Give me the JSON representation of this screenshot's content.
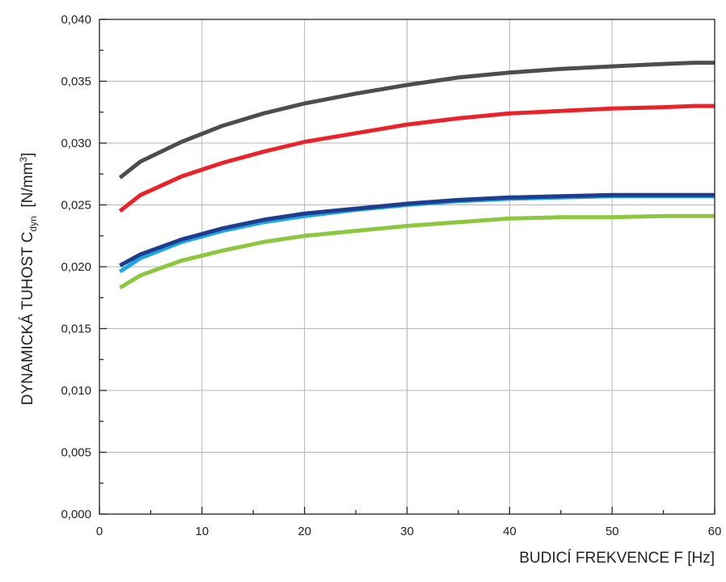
{
  "chart_data": {
    "type": "line",
    "title": "",
    "xlabel": "BUDICÍ FREKVENCE  F [Hz]",
    "ylabel": {
      "main": "DYNAMICKÁ TUHOST C",
      "subscript": "dyn",
      "unit_start": "  [N/mm",
      "superscript": "3",
      "unit_end": "]"
    },
    "xlim": [
      0,
      60
    ],
    "ylim": [
      0.0,
      0.04
    ],
    "x_ticks": [
      0,
      10,
      20,
      30,
      40,
      50,
      60
    ],
    "x_tick_labels": [
      "0",
      "10",
      "20",
      "30",
      "40",
      "50",
      "60"
    ],
    "y_ticks": [
      0.0,
      0.005,
      0.01,
      0.015,
      0.02,
      0.025,
      0.03,
      0.035,
      0.04
    ],
    "y_tick_labels": [
      "0,000",
      "0,005",
      "0,010",
      "0,015",
      "0,020",
      "0,025",
      "0,030",
      "0,035",
      "0,040"
    ],
    "grid": true,
    "legend": "none",
    "x": [
      2,
      4,
      8,
      12,
      16,
      20,
      25,
      30,
      35,
      40,
      45,
      50,
      55,
      58,
      60
    ],
    "series": [
      {
        "color": "#4d4d4d",
        "values": [
          0.0272,
          0.0285,
          0.0301,
          0.0314,
          0.0324,
          0.0332,
          0.034,
          0.0347,
          0.0353,
          0.0357,
          0.036,
          0.0362,
          0.0364,
          0.0365,
          0.0365
        ]
      },
      {
        "color": "#e8232a",
        "values": [
          0.0245,
          0.0258,
          0.0273,
          0.0284,
          0.0293,
          0.0301,
          0.0308,
          0.0315,
          0.032,
          0.0324,
          0.0326,
          0.0328,
          0.0329,
          0.033,
          0.033
        ]
      },
      {
        "color": "#1ca5df",
        "values": [
          0.0196,
          0.0207,
          0.022,
          0.0229,
          0.0236,
          0.0241,
          0.0246,
          0.025,
          0.0253,
          0.0255,
          0.0256,
          0.0257,
          0.0257,
          0.0257,
          0.0257
        ]
      },
      {
        "color": "#1f3d8c",
        "values": [
          0.0201,
          0.021,
          0.0222,
          0.0231,
          0.0238,
          0.0243,
          0.0247,
          0.0251,
          0.0254,
          0.0256,
          0.0257,
          0.0258,
          0.0258,
          0.0258,
          0.0258
        ]
      },
      {
        "color": "#8dc63f",
        "values": [
          0.0183,
          0.0193,
          0.0205,
          0.0213,
          0.022,
          0.0225,
          0.0229,
          0.0233,
          0.0236,
          0.0239,
          0.024,
          0.024,
          0.0241,
          0.0241,
          0.0241
        ]
      }
    ]
  }
}
